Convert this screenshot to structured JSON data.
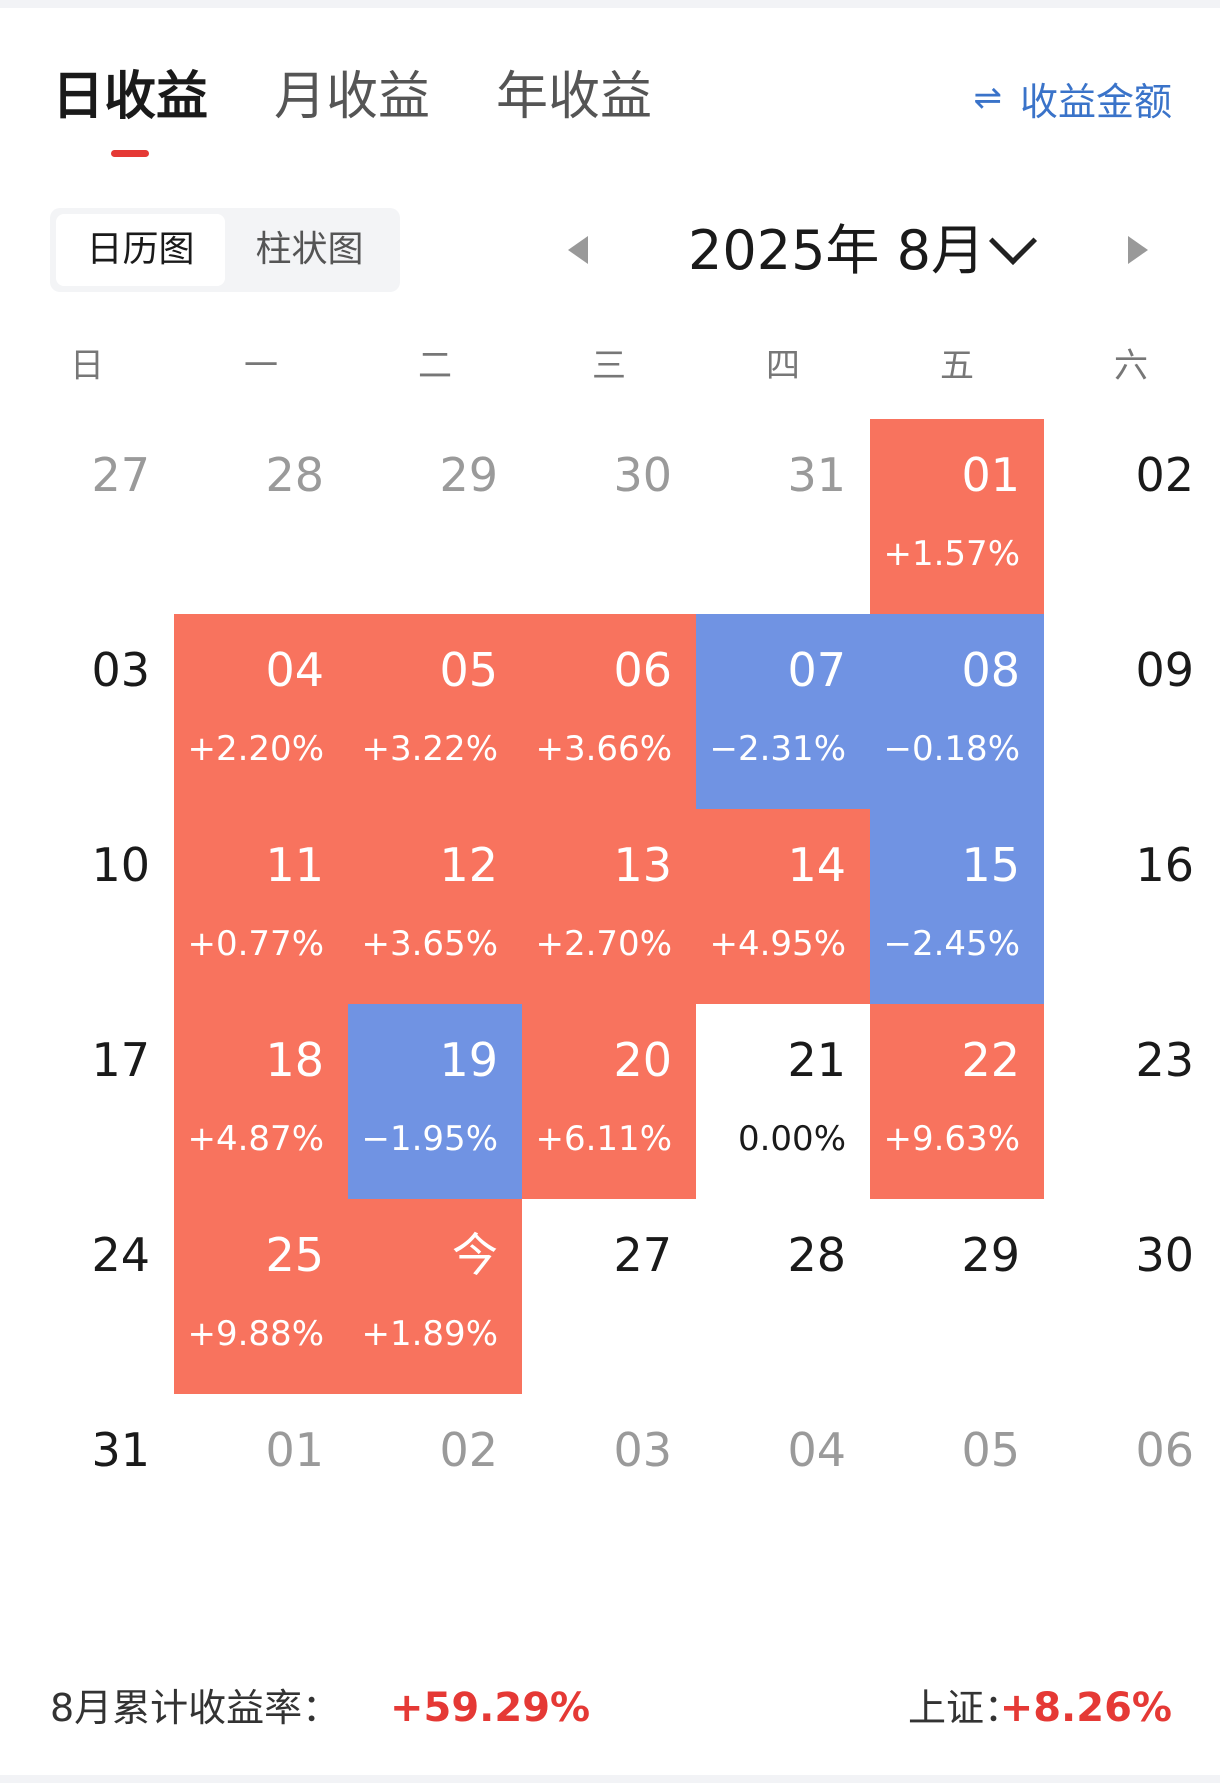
{
  "tabs": [
    {
      "label": "日收益",
      "active": true
    },
    {
      "label": "月收益",
      "active": false
    },
    {
      "label": "年收益",
      "active": false
    }
  ],
  "toggle": {
    "icon": "swap-arrows-icon",
    "label": "收益金额",
    "color": "#3a73c9"
  },
  "view_switch": [
    {
      "label": "日历图",
      "active": true
    },
    {
      "label": "柱状图",
      "active": false
    }
  ],
  "month_nav": {
    "title": "2025年 8月"
  },
  "weekdays": [
    "日",
    "一",
    "二",
    "三",
    "四",
    "五",
    "六"
  ],
  "colors": {
    "up": "#f8735e",
    "down": "#7093e3",
    "accent_red": "#e53935"
  },
  "calendar": [
    [
      {
        "day": "27",
        "state": "muted"
      },
      {
        "day": "28",
        "state": "muted"
      },
      {
        "day": "29",
        "state": "muted"
      },
      {
        "day": "30",
        "state": "muted"
      },
      {
        "day": "31",
        "state": "muted"
      },
      {
        "day": "01",
        "pct": "+1.57%",
        "state": "up"
      },
      {
        "day": "02",
        "state": "plain"
      }
    ],
    [
      {
        "day": "03",
        "state": "plain"
      },
      {
        "day": "04",
        "pct": "+2.20%",
        "state": "up"
      },
      {
        "day": "05",
        "pct": "+3.22%",
        "state": "up"
      },
      {
        "day": "06",
        "pct": "+3.66%",
        "state": "up"
      },
      {
        "day": "07",
        "pct": "−2.31%",
        "state": "down"
      },
      {
        "day": "08",
        "pct": "−0.18%",
        "state": "down"
      },
      {
        "day": "09",
        "state": "plain"
      }
    ],
    [
      {
        "day": "10",
        "state": "plain"
      },
      {
        "day": "11",
        "pct": "+0.77%",
        "state": "up"
      },
      {
        "day": "12",
        "pct": "+3.65%",
        "state": "up"
      },
      {
        "day": "13",
        "pct": "+2.70%",
        "state": "up"
      },
      {
        "day": "14",
        "pct": "+4.95%",
        "state": "up"
      },
      {
        "day": "15",
        "pct": "−2.45%",
        "state": "down"
      },
      {
        "day": "16",
        "state": "plain"
      }
    ],
    [
      {
        "day": "17",
        "state": "plain"
      },
      {
        "day": "18",
        "pct": "+4.87%",
        "state": "up"
      },
      {
        "day": "19",
        "pct": "−1.95%",
        "state": "down"
      },
      {
        "day": "20",
        "pct": "+6.11%",
        "state": "up"
      },
      {
        "day": "21",
        "pct": "0.00%",
        "state": "plain"
      },
      {
        "day": "22",
        "pct": "+9.63%",
        "state": "up"
      },
      {
        "day": "23",
        "state": "plain"
      }
    ],
    [
      {
        "day": "24",
        "state": "plain"
      },
      {
        "day": "25",
        "pct": "+9.88%",
        "state": "up"
      },
      {
        "day": "今",
        "pct": "+1.89%",
        "state": "up"
      },
      {
        "day": "27",
        "state": "plain"
      },
      {
        "day": "28",
        "state": "plain"
      },
      {
        "day": "29",
        "state": "plain"
      },
      {
        "day": "30",
        "state": "plain"
      }
    ],
    [
      {
        "day": "31",
        "state": "plain"
      },
      {
        "day": "01",
        "state": "muted"
      },
      {
        "day": "02",
        "state": "muted"
      },
      {
        "day": "03",
        "state": "muted"
      },
      {
        "day": "04",
        "state": "muted"
      },
      {
        "day": "05",
        "state": "muted"
      },
      {
        "day": "06",
        "state": "muted"
      }
    ]
  ],
  "summary": {
    "label": "8月累计收益率：",
    "value": "+59.29%",
    "index_label": "上证：",
    "index_value": "+8.26%"
  }
}
